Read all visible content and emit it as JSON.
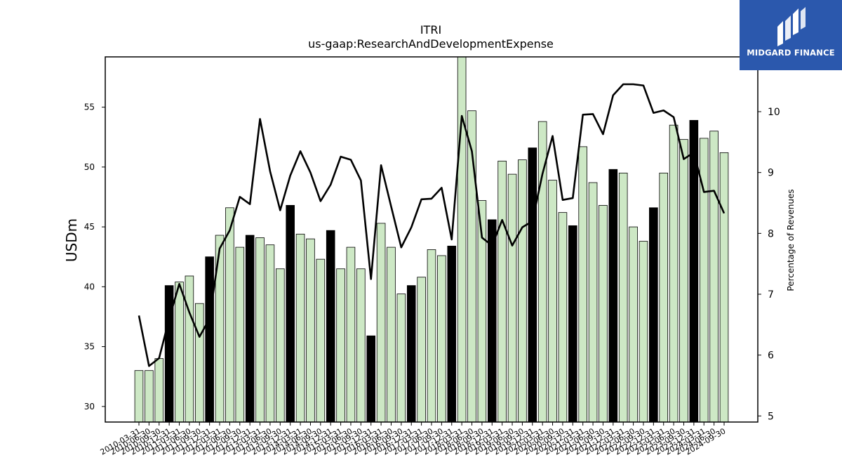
{
  "chart_data": {
    "type": "bar",
    "title": "ITRI",
    "subtitle": "us-gaap:ResearchAndDevelopmentExpense",
    "ylabel": "USDm",
    "y2label": "Percentage of Revenues",
    "ylim": [
      28.7,
      59.2
    ],
    "y2lim": [
      4.9,
      10.9
    ],
    "yticks": [
      30,
      35,
      40,
      45,
      50,
      55
    ],
    "y2ticks": [
      5,
      6,
      7,
      8,
      9,
      10
    ],
    "grid": false,
    "colors": {
      "bar": "#cde8c5",
      "bar_highlight": "#000000",
      "line": "#000000",
      "edge": "#000000"
    },
    "categories": [
      "2010-03-31",
      "2010-06-30",
      "2010-09-30",
      "2010-12-31",
      "2011-03-31",
      "2011-06-30",
      "2011-09-30",
      "2011-12-31",
      "2012-03-31",
      "2012-06-30",
      "2012-09-30",
      "2012-12-31",
      "2013-03-31",
      "2013-06-30",
      "2013-09-30",
      "2013-12-31",
      "2014-03-31",
      "2014-06-30",
      "2014-09-30",
      "2014-12-31",
      "2015-03-31",
      "2015-06-30",
      "2015-09-30",
      "2015-12-31",
      "2016-03-31",
      "2016-06-30",
      "2016-09-30",
      "2016-12-31",
      "2017-03-31",
      "2017-06-30",
      "2017-09-30",
      "2017-12-31",
      "2018-03-31",
      "2018-06-30",
      "2018-09-30",
      "2018-12-31",
      "2019-03-31",
      "2019-06-30",
      "2019-09-30",
      "2019-12-31",
      "2020-03-31",
      "2020-06-30",
      "2020-09-30",
      "2020-12-31",
      "2021-03-31",
      "2021-06-30",
      "2021-09-30",
      "2021-12-31",
      "2022-03-31",
      "2022-06-30",
      "2022-09-30",
      "2022-12-31",
      "2023-03-31",
      "2023-06-30",
      "2023-09-30",
      "2023-12-31",
      "2024-03-31",
      "2024-06-30",
      "2024-09-30"
    ],
    "series": [
      {
        "values": [
          33.0,
          33.0,
          34.0,
          40.1,
          40.4,
          40.9,
          38.6,
          42.5,
          44.3,
          46.6,
          43.3,
          44.3,
          44.1,
          43.5,
          41.5,
          46.8,
          44.4,
          44.0,
          42.3,
          44.7,
          41.5,
          43.3,
          41.5,
          35.9,
          45.3,
          43.3,
          39.4,
          40.1,
          40.8,
          43.1,
          42.6,
          43.4,
          59.2,
          54.7,
          47.2,
          45.6,
          50.5,
          49.4,
          50.6,
          51.6,
          53.8,
          48.9,
          46.2,
          45.1,
          51.7,
          48.7,
          46.8,
          49.8,
          49.5,
          45.0,
          43.8,
          46.6,
          49.5,
          53.5,
          52.3,
          53.9,
          52.4,
          53.0,
          51.2
        ]
      },
      {
        "values": [
          6.65,
          5.82,
          5.95,
          6.6,
          7.17,
          6.7,
          6.3,
          6.6,
          7.75,
          8.05,
          8.6,
          8.48,
          9.88,
          9.02,
          8.38,
          8.95,
          9.35,
          9.0,
          8.53,
          8.8,
          9.26,
          9.21,
          8.87,
          7.25,
          9.12,
          8.44,
          7.77,
          8.1,
          8.56,
          8.57,
          8.75,
          7.9,
          9.93,
          9.35,
          7.93,
          7.8,
          8.22,
          7.8,
          8.1,
          8.2,
          8.98,
          9.6,
          8.55,
          8.58,
          9.95,
          9.96,
          9.63,
          10.27,
          10.45,
          10.45,
          10.43,
          9.98,
          10.02,
          9.91,
          9.22,
          9.33,
          8.68,
          8.7,
          8.33
        ]
      }
    ],
    "highlight": [
      false,
      false,
      false,
      true,
      false,
      false,
      false,
      true,
      false,
      false,
      false,
      true,
      false,
      false,
      false,
      true,
      false,
      false,
      false,
      true,
      false,
      false,
      false,
      true,
      false,
      false,
      false,
      true,
      false,
      false,
      false,
      true,
      false,
      false,
      false,
      true,
      false,
      false,
      false,
      true,
      false,
      false,
      false,
      true,
      false,
      false,
      false,
      true,
      false,
      false,
      false,
      true,
      false,
      false,
      false,
      true,
      false,
      false,
      false
    ]
  },
  "logo": {
    "text": "MIDGARD FINANCE",
    "background": "#2b58ad"
  }
}
